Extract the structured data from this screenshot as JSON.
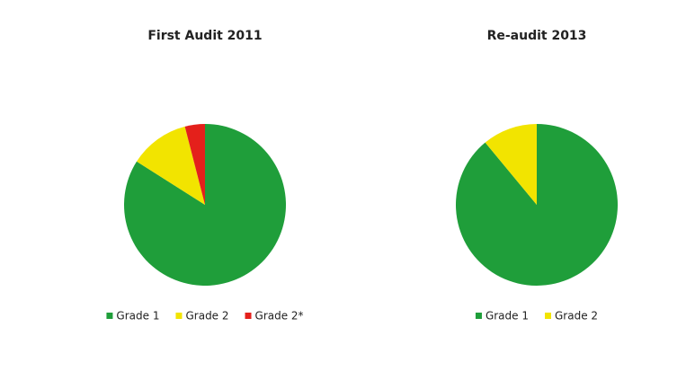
{
  "chart_data": [
    {
      "type": "pie",
      "title": "First Audit 2011",
      "categories": [
        "Grade 1",
        "Grade 2",
        "Grade 2*"
      ],
      "values": [
        84,
        12,
        4
      ],
      "colors": [
        "#1f9e3a",
        "#f2e400",
        "#e4201b"
      ]
    },
    {
      "type": "pie",
      "title": "Re-audit 2013",
      "categories": [
        "Grade 1",
        "Grade 2"
      ],
      "values": [
        89,
        11
      ],
      "colors": [
        "#1f9e3a",
        "#f2e400"
      ]
    }
  ]
}
